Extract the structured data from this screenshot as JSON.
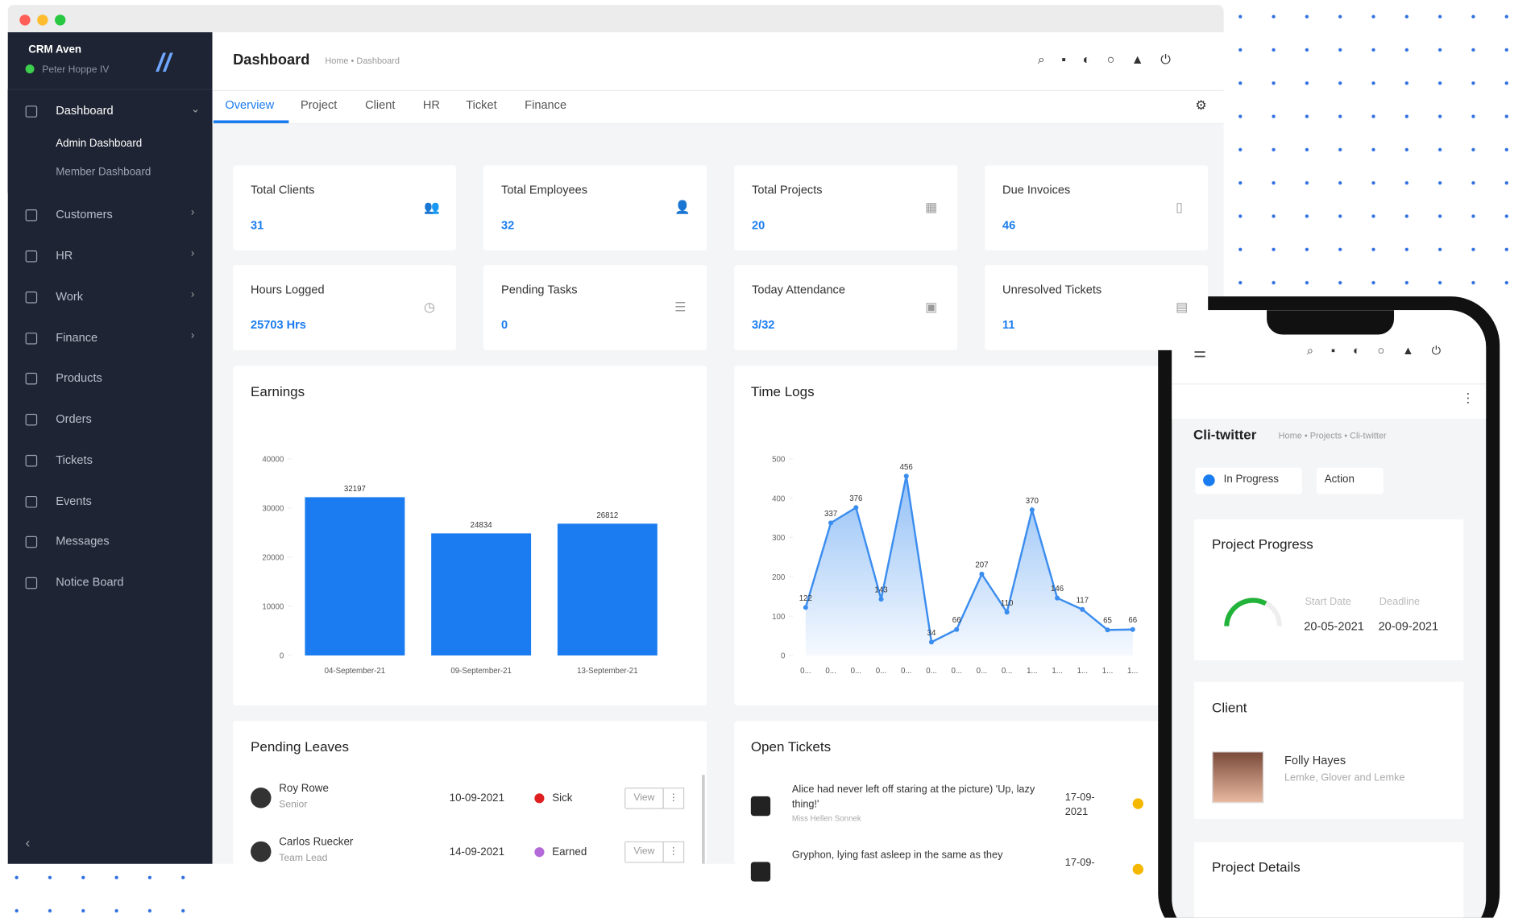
{
  "sidebar": {
    "company": "CRM Aven",
    "user": "Peter Hoppe IV",
    "menu": [
      "Dashboard",
      "Customers",
      "HR",
      "Work",
      "Finance",
      "Products",
      "Orders",
      "Tickets",
      "Events",
      "Messages",
      "Notice Board"
    ],
    "submenu": [
      "Admin Dashboard",
      "Member Dashboard"
    ]
  },
  "header": {
    "title": "Dashboard",
    "breadcrumb": "Home • Dashboard"
  },
  "tabs": [
    "Overview",
    "Project",
    "Client",
    "HR",
    "Ticket",
    "Finance"
  ],
  "stats": [
    {
      "label": "Total Clients",
      "value": 31
    },
    {
      "label": "Total Employees",
      "value": 32
    },
    {
      "label": "Total Projects",
      "value": 20
    },
    {
      "label": "Due Invoices",
      "value": 46
    },
    {
      "label": "Hours Logged",
      "value": "25703 Hrs"
    },
    {
      "label": "Pending Tasks",
      "value": 0
    },
    {
      "label": "Today Attendance",
      "value": "3/32"
    },
    {
      "label": "Unresolved Tickets",
      "value": 11
    }
  ],
  "earnings": {
    "type": "bar",
    "title": "Earnings",
    "categories": [
      "04-September-21",
      "09-September-21",
      "13-September-21"
    ],
    "values": [
      32197,
      24834,
      26812
    ],
    "color": "#1a7cf0",
    "ylim": [
      0,
      40000
    ],
    "yticks": [
      0,
      10000,
      20000,
      30000,
      40000
    ]
  },
  "time_logs": {
    "type": "line",
    "title": "Time Logs",
    "categories": [
      "0...",
      "0...",
      "0...",
      "0...",
      "0...",
      "0...",
      "0...",
      "0...",
      "0...",
      "1...",
      "1...",
      "1...",
      "1...",
      "1..."
    ],
    "values": [
      122,
      337,
      376,
      143,
      456,
      34,
      66,
      207,
      110,
      370,
      146,
      117,
      65,
      66
    ],
    "color": "#3b8def",
    "ylim": [
      0,
      500
    ],
    "yticks": [
      0,
      100,
      200,
      300,
      400,
      500
    ]
  },
  "pending_leaves": {
    "title": "Pending Leaves",
    "rows": [
      {
        "name": "Roy Rowe",
        "role": "Senior",
        "date": "10-09-2021",
        "type": "Sick",
        "action": "View"
      },
      {
        "name": "Carlos Ruecker",
        "role": "Team Lead",
        "date": "14-09-2021",
        "type": "Earned",
        "action": "View"
      }
    ]
  },
  "open_tickets": {
    "title": "Open Tickets",
    "rows": [
      {
        "text": "Alice had never left off staring at the picture) 'Up, lazy thing!'",
        "author": "Miss Hellen Sonnek",
        "date": "17-09-2021"
      },
      {
        "text": "Gryphon, lying fast asleep in the same as they",
        "date": "17-09-"
      }
    ]
  },
  "phone": {
    "title": "Cli-twitter",
    "breadcrumb": "Home • Projects • Cli-twitter",
    "status": "In Progress",
    "action": "Action",
    "progress_title": "Project Progress",
    "start_label": "Start Date",
    "deadline_label": "Deadline",
    "start": "20-05-2021",
    "deadline": "20-09-2021",
    "client_title": "Client",
    "client_name": "Folly Hayes",
    "client_company": "Lemke, Glover and Lemke",
    "details_title": "Project Details"
  }
}
